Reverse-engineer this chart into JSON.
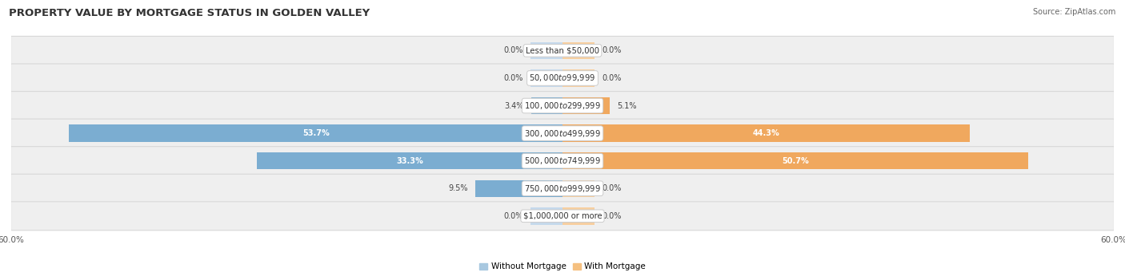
{
  "title": "PROPERTY VALUE BY MORTGAGE STATUS IN GOLDEN VALLEY",
  "source": "Source: ZipAtlas.com",
  "categories": [
    "Less than $50,000",
    "$50,000 to $99,999",
    "$100,000 to $299,999",
    "$300,000 to $499,999",
    "$500,000 to $749,999",
    "$750,000 to $999,999",
    "$1,000,000 or more"
  ],
  "without_mortgage": [
    0.0,
    0.0,
    3.4,
    53.7,
    33.3,
    9.5,
    0.0
  ],
  "with_mortgage": [
    0.0,
    0.0,
    5.1,
    44.3,
    50.7,
    0.0,
    0.0
  ],
  "without_mortgage_color": "#7badd1",
  "with_mortgage_color": "#f0a85e",
  "without_mortgage_color_pale": "#c5d9ec",
  "with_mortgage_color_pale": "#f7cfa0",
  "without_mortgage_legend": "#a8c8e0",
  "with_mortgage_legend": "#f5c080",
  "row_bg_color": "#efefef",
  "row_border_color": "#d8d8d8",
  "axis_limit": 60.0,
  "bar_height": 0.62,
  "stub_size": 3.5,
  "title_fontsize": 9.5,
  "source_fontsize": 7.0,
  "legend_fontsize": 7.5,
  "category_fontsize": 7.2,
  "value_fontsize": 7.0
}
